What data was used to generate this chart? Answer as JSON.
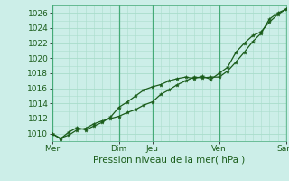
{
  "bg_color": "#cceee8",
  "grid_color_minor": "#aaddcc",
  "grid_color_major": "#44aa77",
  "line_color": "#1a5c1a",
  "marker_color": "#1a5c1a",
  "xlabel": "Pression niveau de la mer( hPa )",
  "xlabel_fontsize": 7.5,
  "tick_label_color": "#1a5c1a",
  "tick_fontsize": 6.5,
  "ylim": [
    1009.0,
    1027.0
  ],
  "yticks": [
    1010,
    1012,
    1014,
    1016,
    1018,
    1020,
    1022,
    1024,
    1026
  ],
  "day_vlines": [
    0,
    24,
    36,
    60,
    84
  ],
  "xtick_labels_shown": [
    "Mer",
    "Dim",
    "Jeu",
    "Ven",
    "Sam"
  ],
  "xtick_positions_shown": [
    0,
    24,
    36,
    60,
    84
  ],
  "series1_x": [
    0,
    3,
    6,
    9,
    12,
    15,
    18,
    21,
    24,
    27,
    30,
    33,
    36,
    39,
    42,
    45,
    48,
    51,
    54,
    57,
    60,
    63,
    66,
    69,
    72,
    75,
    78,
    81,
    84
  ],
  "series1_y": [
    1010.0,
    1009.4,
    1009.8,
    1010.5,
    1010.7,
    1011.3,
    1011.7,
    1012.0,
    1012.3,
    1012.8,
    1013.2,
    1013.8,
    1014.2,
    1015.2,
    1015.8,
    1016.5,
    1017.0,
    1017.5,
    1017.4,
    1017.5,
    1017.5,
    1018.3,
    1019.5,
    1020.8,
    1022.2,
    1023.3,
    1025.2,
    1026.0,
    1026.5
  ],
  "series2_x": [
    0,
    3,
    6,
    9,
    12,
    15,
    18,
    21,
    24,
    27,
    30,
    33,
    36,
    39,
    42,
    45,
    48,
    51,
    54,
    57,
    60,
    63,
    66,
    69,
    72,
    75,
    78,
    81,
    84
  ],
  "series2_y": [
    1010.0,
    1009.3,
    1010.2,
    1010.8,
    1010.5,
    1011.0,
    1011.5,
    1012.2,
    1013.5,
    1014.2,
    1015.0,
    1015.8,
    1016.2,
    1016.5,
    1017.0,
    1017.3,
    1017.5,
    1017.3,
    1017.6,
    1017.2,
    1018.0,
    1018.8,
    1020.8,
    1022.0,
    1023.0,
    1023.5,
    1024.8,
    1025.8,
    1026.5
  ]
}
